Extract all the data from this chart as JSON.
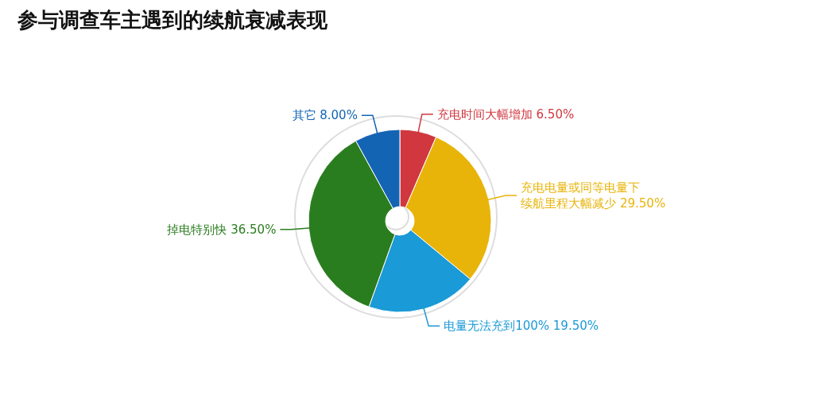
{
  "chart_data": {
    "type": "donut",
    "title": "参与调查车主遇到的续航衰减表现",
    "categories": [
      "充电时间大幅增加",
      "充电电量或同等电量下续航里程大幅减少",
      "电量无法充到100%",
      "掉电特别快",
      "其它"
    ],
    "values": [
      6.5,
      29.5,
      19.5,
      36.5,
      8.0
    ],
    "value_labels": [
      "6.50%",
      "29.50%",
      "19.50%",
      "36.50%",
      "8.00%"
    ],
    "colors": [
      "#d0373f",
      "#e8b40a",
      "#1a9ad6",
      "#2a7d1f",
      "#1464b4"
    ]
  }
}
